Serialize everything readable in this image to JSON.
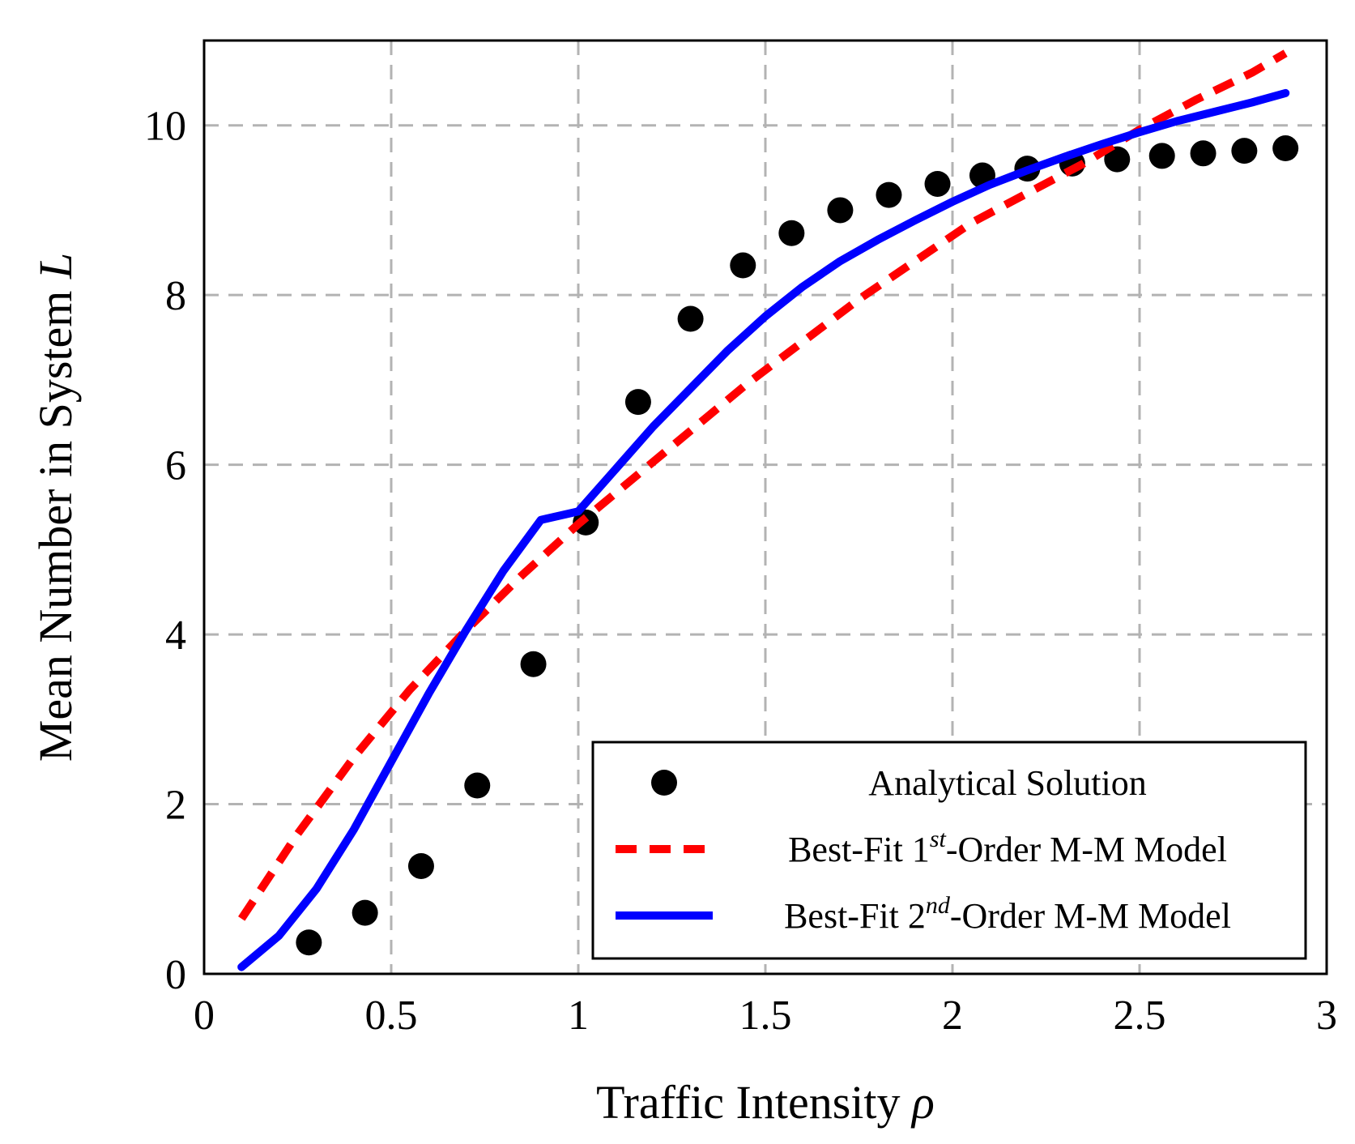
{
  "chart_data": {
    "type": "line",
    "xlabel_main": "Traffic Intensity ",
    "xlabel_symbol": "ρ",
    "ylabel_main": "Mean Number in System ",
    "ylabel_symbol": "L",
    "xlim": [
      0,
      3
    ],
    "ylim": [
      0,
      11
    ],
    "xticks": [
      0,
      0.5,
      1,
      1.5,
      2,
      2.5,
      3
    ],
    "xtick_labels": [
      "0",
      "0.5",
      "1",
      "1.5",
      "2",
      "2.5",
      "3"
    ],
    "yticks": [
      0,
      2,
      4,
      6,
      8,
      10
    ],
    "ytick_labels": [
      "0",
      "2",
      "4",
      "6",
      "8",
      "10"
    ],
    "grid": true,
    "legend_position": "bottom-right",
    "series": [
      {
        "name": "Analytical Solution",
        "style": "markers",
        "color": "#000000",
        "points": [
          [
            0.28,
            0.37
          ],
          [
            0.43,
            0.72
          ],
          [
            0.58,
            1.27
          ],
          [
            0.73,
            2.22
          ],
          [
            0.88,
            3.65
          ],
          [
            1.02,
            5.32
          ],
          [
            1.16,
            6.74
          ],
          [
            1.3,
            7.72
          ],
          [
            1.44,
            8.35
          ],
          [
            1.57,
            8.73
          ],
          [
            1.7,
            9.0
          ],
          [
            1.83,
            9.18
          ],
          [
            1.96,
            9.31
          ],
          [
            2.08,
            9.41
          ],
          [
            2.2,
            9.49
          ],
          [
            2.32,
            9.55
          ],
          [
            2.44,
            9.6
          ],
          [
            2.56,
            9.64
          ],
          [
            2.67,
            9.67
          ],
          [
            2.78,
            9.7
          ],
          [
            2.89,
            9.73
          ]
        ]
      },
      {
        "name_prefix": "Best-Fit 1",
        "name_sup": "st",
        "name_suffix": "-Order M-M Model",
        "style": "dashed",
        "color": "#ff0000",
        "points": [
          [
            0.1,
            0.65
          ],
          [
            0.25,
            1.65
          ],
          [
            0.4,
            2.55
          ],
          [
            0.55,
            3.35
          ],
          [
            0.7,
            4.05
          ],
          [
            0.85,
            4.7
          ],
          [
            1.0,
            5.3
          ],
          [
            1.15,
            5.85
          ],
          [
            1.3,
            6.4
          ],
          [
            1.45,
            6.95
          ],
          [
            1.6,
            7.45
          ],
          [
            1.75,
            7.95
          ],
          [
            1.9,
            8.4
          ],
          [
            2.05,
            8.85
          ],
          [
            2.2,
            9.2
          ],
          [
            2.35,
            9.55
          ],
          [
            2.5,
            9.95
          ],
          [
            2.65,
            10.3
          ],
          [
            2.8,
            10.62
          ],
          [
            2.89,
            10.85
          ]
        ]
      },
      {
        "name_prefix": "Best-Fit 2",
        "name_sup": "nd",
        "name_suffix": "-Order M-M Model",
        "style": "solid",
        "color": "#0000ff",
        "points": [
          [
            0.1,
            0.08
          ],
          [
            0.2,
            0.45
          ],
          [
            0.3,
            1.0
          ],
          [
            0.4,
            1.7
          ],
          [
            0.5,
            2.5
          ],
          [
            0.6,
            3.3
          ],
          [
            0.7,
            4.05
          ],
          [
            0.8,
            4.75
          ],
          [
            0.9,
            5.35
          ],
          [
            1.0,
            5.45
          ],
          [
            1.1,
            5.95
          ],
          [
            1.2,
            6.45
          ],
          [
            1.3,
            6.9
          ],
          [
            1.4,
            7.35
          ],
          [
            1.5,
            7.75
          ],
          [
            1.6,
            8.1
          ],
          [
            1.7,
            8.4
          ],
          [
            1.8,
            8.65
          ],
          [
            1.9,
            8.88
          ],
          [
            2.0,
            9.1
          ],
          [
            2.1,
            9.3
          ],
          [
            2.2,
            9.47
          ],
          [
            2.3,
            9.63
          ],
          [
            2.4,
            9.78
          ],
          [
            2.5,
            9.92
          ],
          [
            2.6,
            10.05
          ],
          [
            2.7,
            10.16
          ],
          [
            2.8,
            10.27
          ],
          [
            2.89,
            10.38
          ]
        ]
      }
    ]
  }
}
